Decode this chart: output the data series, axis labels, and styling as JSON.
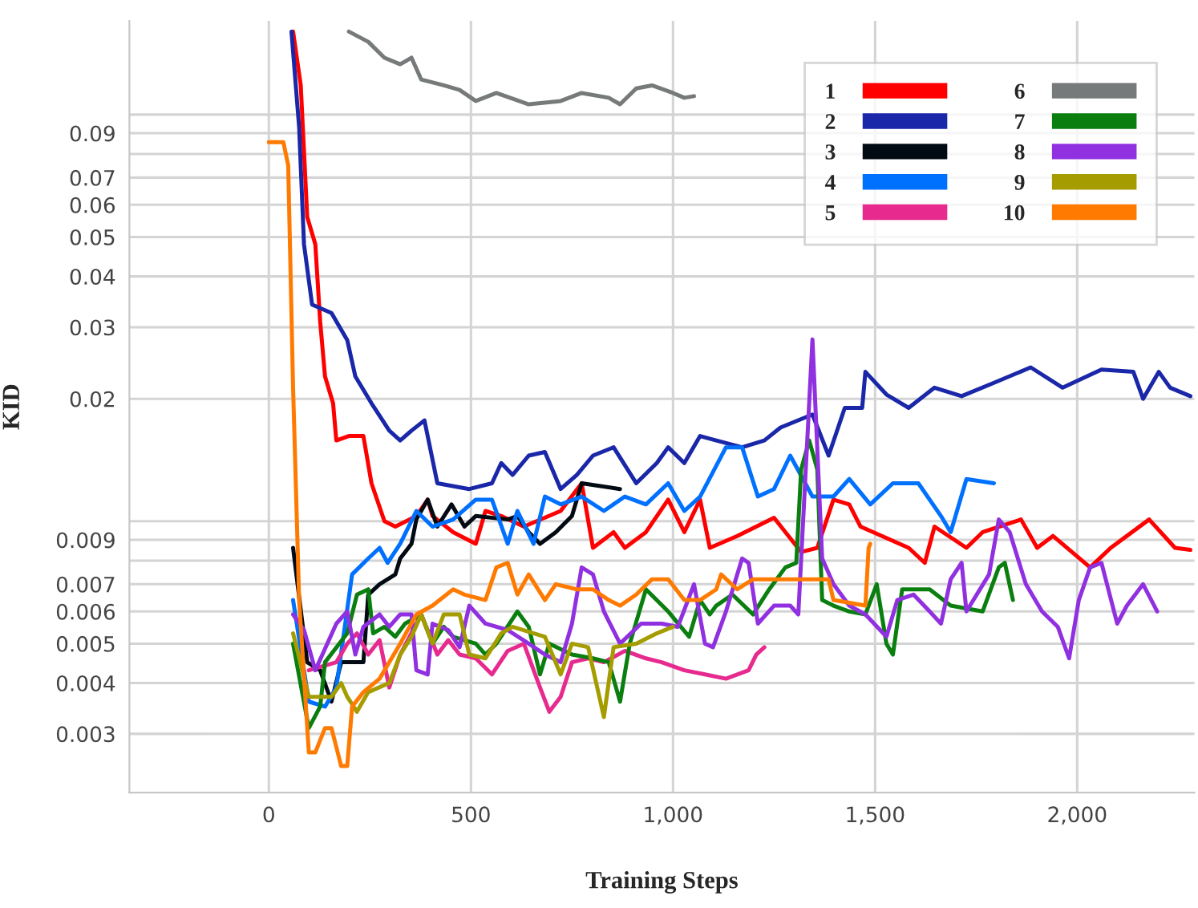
{
  "chart_data": {
    "type": "line",
    "xlabel": "Training Steps",
    "ylabel": "KID",
    "log": "y",
    "grid": true,
    "legend": "top right",
    "xlim": [
      -345,
      2290
    ],
    "ylim": [
      0.00215,
      0.17
    ],
    "xticks": [
      0,
      500,
      {
        "value": 1000,
        "label": "1,000"
      },
      {
        "value": 1500,
        "label": "1,500"
      },
      {
        "value": 2000,
        "label": "2,000"
      }
    ],
    "yticks": [
      0.003,
      0.004,
      0.005,
      0.006,
      0.007,
      {
        "value": 0.008,
        "label": null
      },
      0.009,
      {
        "value": 0.01,
        "label": null
      },
      0.02,
      0.03,
      0.04,
      0.05,
      0.06,
      0.07,
      {
        "value": 0.08,
        "label": null
      },
      0.09,
      {
        "value": 0.1,
        "label": null
      }
    ],
    "series": [
      {
        "name": "1",
        "color": "#ff0000",
        "x": [
          60,
          79,
          95,
          115,
          127,
          139,
          159,
          167,
          198,
          234,
          254,
          286,
          313,
          365,
          393,
          405,
          456,
          512,
          536,
          575,
          631,
          722,
          774,
          802,
          853,
          881,
          933,
          988,
          1028,
          1067,
          1091,
          1159,
          1250,
          1317,
          1357,
          1397,
          1436,
          1464,
          1583,
          1623,
          1647,
          1726,
          1766,
          1861,
          1901,
          1940,
          2032,
          2083,
          2178,
          2242,
          2280
        ],
        "values": [
          0.16,
          0.118,
          0.056,
          0.048,
          0.031,
          0.0227,
          0.0195,
          0.0158,
          0.0162,
          0.0162,
          0.0124,
          0.01,
          0.0097,
          0.0103,
          0.0113,
          0.0103,
          0.0094,
          0.0088,
          0.0106,
          0.0103,
          0.0097,
          0.0106,
          0.0124,
          0.0086,
          0.0094,
          0.0086,
          0.0094,
          0.0113,
          0.0094,
          0.0113,
          0.0086,
          0.0092,
          0.0102,
          0.0084,
          0.0086,
          0.0113,
          0.011,
          0.0097,
          0.0086,
          0.0079,
          0.0097,
          0.0086,
          0.0094,
          0.0101,
          0.0086,
          0.0092,
          0.0077,
          0.0086,
          0.0101,
          0.0086,
          0.0085
        ]
      },
      {
        "name": "2",
        "color": "#1a27a8",
        "x": [
          56,
          75,
          87,
          107,
          155,
          194,
          214,
          254,
          298,
          325,
          353,
          385,
          417,
          496,
          552,
          575,
          603,
          643,
          683,
          722,
          762,
          802,
          853,
          909,
          960,
          988,
          1028,
          1067,
          1107,
          1171,
          1226,
          1266,
          1345,
          1385,
          1425,
          1468,
          1476,
          1528,
          1583,
          1647,
          1714,
          1794,
          1885,
          1964,
          2060,
          2139,
          2163,
          2202,
          2230,
          2280
        ],
        "values": [
          0.16,
          0.093,
          0.048,
          0.0341,
          0.0325,
          0.0279,
          0.0227,
          0.0195,
          0.0167,
          0.0158,
          0.0167,
          0.0177,
          0.0124,
          0.012,
          0.0124,
          0.0139,
          0.013,
          0.0145,
          0.0148,
          0.012,
          0.013,
          0.0145,
          0.0152,
          0.0124,
          0.0139,
          0.0152,
          0.0139,
          0.0162,
          0.0158,
          0.0152,
          0.0158,
          0.017,
          0.0183,
          0.0145,
          0.019,
          0.019,
          0.0233,
          0.0205,
          0.019,
          0.0213,
          0.0203,
          0.0219,
          0.0239,
          0.0213,
          0.0236,
          0.0233,
          0.02,
          0.0233,
          0.0213,
          0.0203
        ]
      },
      {
        "name": "3",
        "color": "#020a14",
        "x": [
          60,
          95,
          127,
          155,
          179,
          234,
          246,
          274,
          313,
          325,
          353,
          365,
          393,
          417,
          452,
          484,
          512,
          591,
          615,
          643,
          671,
          710,
          750,
          774,
          798,
          849,
          869
        ],
        "values": [
          0.0086,
          0.0045,
          0.0043,
          0.0036,
          0.0045,
          0.0045,
          0.0066,
          0.007,
          0.0074,
          0.0081,
          0.0088,
          0.0101,
          0.0113,
          0.0097,
          0.011,
          0.0097,
          0.0103,
          0.0101,
          0.0103,
          0.0094,
          0.0088,
          0.0094,
          0.0103,
          0.0124,
          null,
          null,
          0.012
        ]
      },
      {
        "name": "4",
        "color": "#0070ff",
        "x": [
          60,
          99,
          139,
          167,
          206,
          246,
          274,
          294,
          325,
          365,
          405,
          456,
          512,
          552,
          591,
          615,
          655,
          683,
          722,
          774,
          829,
          881,
          933,
          988,
          1028,
          1067,
          1131,
          1171,
          1210,
          1250,
          1290,
          1345,
          1397,
          1436,
          1488,
          1544,
          1607,
          1663,
          1687,
          1726,
          1794
        ],
        "values": [
          0.0064,
          0.0036,
          0.0035,
          0.0039,
          0.0074,
          0.0081,
          0.0086,
          0.0079,
          0.0088,
          0.0106,
          0.0097,
          0.0101,
          0.0113,
          0.0113,
          0.0088,
          0.0106,
          0.0088,
          0.0115,
          0.011,
          0.0115,
          0.0106,
          0.0115,
          0.011,
          0.0124,
          0.0106,
          0.0115,
          0.0152,
          0.0152,
          0.0115,
          0.012,
          0.0145,
          0.0115,
          0.0115,
          0.0127,
          0.011,
          0.0124,
          0.0124,
          0.0103,
          0.0094,
          0.0127,
          0.0124
        ]
      },
      {
        "name": "5",
        "color": "#e62a8e",
        "x": [
          99,
          167,
          194,
          218,
          246,
          274,
          298,
          325,
          377,
          417,
          444,
          472,
          512,
          552,
          591,
          631,
          671,
          694,
          722,
          750,
          790,
          829,
          881,
          933,
          972,
          1028,
          1079,
          1131,
          1187,
          1206,
          1226
        ],
        "values": [
          0.0043,
          0.0045,
          0.005,
          0.0053,
          0.0047,
          0.0051,
          0.0039,
          0.0047,
          0.0059,
          0.0047,
          0.0051,
          0.0047,
          0.0046,
          0.0042,
          0.0048,
          0.005,
          0.0039,
          0.0034,
          0.0037,
          0.0045,
          0.0046,
          0.0045,
          0.0048,
          0.0046,
          0.0045,
          0.0043,
          0.0042,
          0.0041,
          0.0043,
          0.0047,
          0.0049
        ]
      },
      {
        "name": "6",
        "color": "#777a7a",
        "x": [
          198,
          246,
          286,
          325,
          353,
          377,
          433,
          472,
          512,
          563,
          643,
          722,
          774,
          841,
          869,
          909,
          948,
          1000,
          1028,
          1052
        ],
        "values": [
          0.16,
          0.151,
          0.138,
          0.133,
          0.138,
          0.122,
          0.118,
          0.115,
          0.108,
          0.113,
          0.106,
          0.108,
          0.113,
          0.11,
          0.106,
          0.116,
          0.118,
          0.113,
          0.11,
          0.111
        ]
      },
      {
        "name": "7",
        "color": "#0a7f10",
        "x": [
          60,
          99,
          127,
          139,
          194,
          218,
          246,
          258,
          286,
          313,
          337,
          377,
          405,
          433,
          456,
          512,
          536,
          563,
          615,
          643,
          671,
          694,
          750,
          802,
          841,
          869,
          893,
          933,
          988,
          1040,
          1067,
          1091,
          1107,
          1147,
          1198,
          1238,
          1278,
          1305,
          1317,
          1337,
          1357,
          1369,
          1397,
          1436,
          1476,
          1504,
          1528,
          1544,
          1567,
          1635,
          1687,
          1766,
          1806,
          1821,
          1841
        ],
        "values": [
          0.005,
          0.0031,
          0.0035,
          0.0045,
          0.0053,
          0.0066,
          0.0068,
          0.0053,
          0.0055,
          0.0052,
          0.0056,
          0.0059,
          0.005,
          0.0055,
          0.0052,
          0.005,
          0.0047,
          0.005,
          0.006,
          0.0055,
          0.0042,
          0.005,
          0.0047,
          0.0046,
          0.0045,
          0.0036,
          0.005,
          0.0068,
          0.006,
          0.0052,
          0.0064,
          0.0059,
          0.0062,
          0.0066,
          0.0059,
          0.0068,
          0.0077,
          0.0079,
          0.0134,
          0.0158,
          0.0134,
          0.0064,
          0.0062,
          0.006,
          0.0059,
          0.007,
          0.005,
          0.0047,
          0.0068,
          0.0068,
          0.0062,
          0.006,
          0.0077,
          0.0079,
          0.0064
        ]
      },
      {
        "name": "8",
        "color": "#9030e0",
        "x": [
          60,
          87,
          115,
          167,
          194,
          214,
          234,
          274,
          298,
          325,
          353,
          365,
          393,
          405,
          444,
          472,
          496,
          536,
          591,
          643,
          683,
          722,
          750,
          774,
          802,
          829,
          869,
          921,
          972,
          1012,
          1052,
          1079,
          1099,
          1131,
          1171,
          1187,
          1210,
          1250,
          1290,
          1310,
          1345,
          1369,
          1397,
          1436,
          1476,
          1528,
          1555,
          1595,
          1635,
          1663,
          1687,
          1714,
          1726,
          1782,
          1806,
          1833,
          1873,
          1913,
          1952,
          1980,
          2004,
          2032,
          2060,
          2099,
          2123,
          2163,
          2198
        ],
        "values": [
          0.0059,
          0.0054,
          0.0043,
          0.0056,
          0.006,
          0.0047,
          0.0055,
          0.0059,
          0.0055,
          0.0059,
          0.0059,
          0.0043,
          0.0042,
          0.0056,
          0.0054,
          0.0049,
          0.0062,
          0.0056,
          0.0054,
          0.005,
          0.0047,
          0.0045,
          0.0056,
          0.0077,
          0.0074,
          0.006,
          0.005,
          0.0056,
          0.0056,
          0.0055,
          0.007,
          0.005,
          0.0049,
          0.006,
          0.0081,
          0.0079,
          0.0056,
          0.0062,
          0.0062,
          0.0059,
          0.028,
          0.0081,
          0.007,
          0.0062,
          0.0059,
          0.0052,
          0.0064,
          0.0066,
          0.006,
          0.0056,
          0.0072,
          0.0079,
          0.006,
          0.0074,
          0.0101,
          0.0094,
          0.007,
          0.006,
          0.0055,
          0.0046,
          0.0064,
          0.0077,
          0.0079,
          0.0056,
          0.0062,
          0.007,
          0.006
        ]
      },
      {
        "name": "9",
        "color": "#a59c00",
        "x": [
          60,
          99,
          155,
          179,
          194,
          218,
          246,
          298,
          325,
          353,
          377,
          405,
          433,
          472,
          496,
          536,
          575,
          603,
          683,
          722,
          750,
          790,
          829,
          853,
          909,
          960,
          1000
        ],
        "values": [
          0.0053,
          0.0037,
          0.0037,
          0.004,
          0.0037,
          0.0034,
          0.0038,
          0.004,
          0.0047,
          0.0052,
          0.0059,
          0.005,
          0.0059,
          0.0059,
          0.0047,
          0.0046,
          0.0053,
          0.0055,
          0.0052,
          0.0042,
          0.005,
          0.0049,
          0.0033,
          0.0049,
          0.005,
          0.0053,
          0.0055
        ]
      },
      {
        "name": "10",
        "color": "#ff7a00",
        "x": [
          0,
          36,
          48,
          60,
          75,
          99,
          115,
          139,
          155,
          179,
          194,
          206,
          234,
          274,
          325,
          365,
          405,
          456,
          484,
          536,
          563,
          591,
          615,
          643,
          683,
          710,
          762,
          802,
          841,
          869,
          909,
          948,
          988,
          1028,
          1067,
          1107,
          1119,
          1159,
          1198,
          1385,
          1397,
          1476,
          1484,
          1488
        ],
        "values": [
          0.0855,
          0.0855,
          0.075,
          0.0213,
          0.0064,
          0.0027,
          0.0027,
          0.0031,
          0.0031,
          0.0025,
          0.0025,
          0.0035,
          0.0038,
          0.0041,
          0.005,
          0.0059,
          0.0062,
          0.0068,
          0.0066,
          0.0064,
          0.0077,
          0.0079,
          0.0066,
          0.0074,
          0.0064,
          0.007,
          0.0068,
          0.0068,
          0.0064,
          0.0062,
          0.0066,
          0.0072,
          0.0072,
          0.0064,
          0.0064,
          0.0068,
          0.0074,
          0.0068,
          0.0072,
          0.0072,
          0.0064,
          0.0062,
          0.0086,
          0.0088
        ]
      }
    ]
  }
}
